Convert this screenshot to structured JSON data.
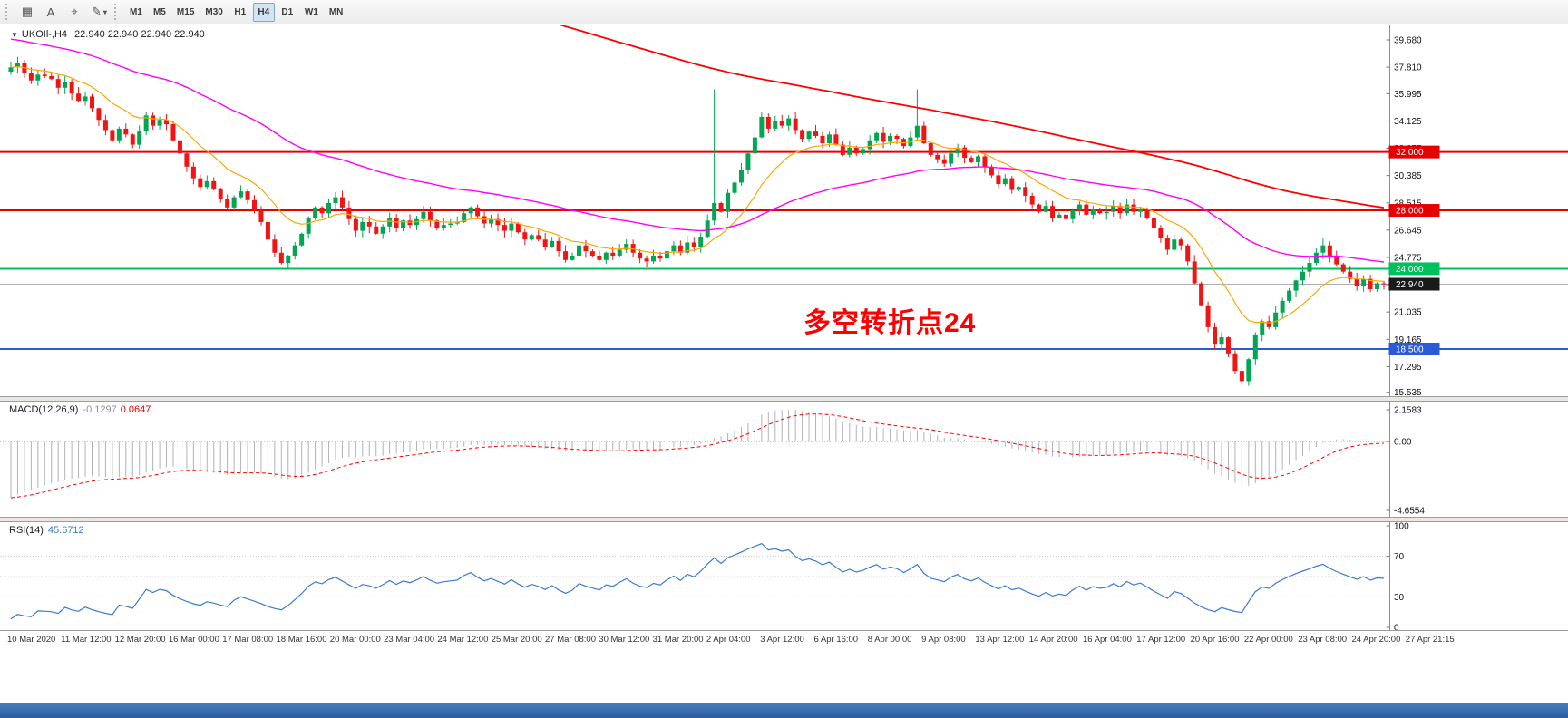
{
  "toolbar": {
    "tools": [
      {
        "name": "grid-tool",
        "glyph": "▦"
      },
      {
        "name": "text-tool",
        "glyph": "A"
      },
      {
        "name": "crosshair-tool",
        "glyph": "⌖"
      },
      {
        "name": "draw-tool",
        "glyph": "✎",
        "caret": "▾"
      }
    ],
    "timeframes": [
      "M1",
      "M5",
      "M15",
      "M30",
      "H1",
      "H4",
      "D1",
      "W1",
      "MN"
    ],
    "active_timeframe": "H4"
  },
  "chart": {
    "collapse_arrow": "▼",
    "title": "UKOIl-,H4",
    "ohlc": "22.940 22.940 22.940 22.940",
    "annotation": "多空转折点24",
    "annotation_color": "#ff0000",
    "colors": {
      "up": "#00a651",
      "down": "#f01414",
      "fast_ma": "#ffa500",
      "mid_ma": "#ff00ff",
      "slow_ma": "#ff0000",
      "current_line": "#b0b0b0",
      "current_badge": "#1a1a1a"
    },
    "price_ticks": [
      "39.680",
      "37.810",
      "35.995",
      "34.125",
      "32.255",
      "30.385",
      "28.515",
      "26.645",
      "24.775",
      "22.905",
      "21.035",
      "19.165",
      "17.295",
      "15.535"
    ],
    "levels": [
      {
        "label": "32.000",
        "value": 32.0,
        "color": "#e60000",
        "width": 2
      },
      {
        "label": "28.000",
        "value": 28.0,
        "color": "#e60000",
        "width": 2
      },
      {
        "label": "24.000",
        "value": 24.0,
        "color": "#00bf5f",
        "width": 2
      },
      {
        "label": "18.500",
        "value": 18.5,
        "color": "#2a5bd7",
        "width": 2
      }
    ],
    "current_price": {
      "label": "22.940",
      "value": 22.94
    },
    "time_labels": [
      "10 Mar 2020",
      "11 Mar 12:00",
      "12 Mar 20:00",
      "16 Mar 00:00",
      "17 Mar 08:00",
      "18 Mar 16:00",
      "20 Mar 00:00",
      "23 Mar 04:00",
      "24 Mar 12:00",
      "25 Mar 20:00",
      "27 Mar 08:00",
      "30 Mar 12:00",
      "31 Mar 20:00",
      "2 Apr 04:00",
      "3 Apr 12:00",
      "6 Apr 16:00",
      "8 Apr 00:00",
      "9 Apr 08:00",
      "13 Apr 12:00",
      "14 Apr 20:00",
      "16 Apr 04:00",
      "17 Apr 12:00",
      "20 Apr 16:00",
      "22 Apr 00:00",
      "23 Apr 08:00",
      "24 Apr 20:00",
      "27 Apr 21:15"
    ]
  },
  "chart_data": {
    "type": "candlestick",
    "symbol": "UKOIl-",
    "timeframe": "H4",
    "first_open": 37.5,
    "closes": [
      37.8,
      38.1,
      37.4,
      36.9,
      37.3,
      37.2,
      37.0,
      36.4,
      36.8,
      36.0,
      35.5,
      35.8,
      35.0,
      34.2,
      33.5,
      32.8,
      33.6,
      33.2,
      32.5,
      33.4,
      34.5,
      33.8,
      34.2,
      33.9,
      32.8,
      31.9,
      31.0,
      30.2,
      29.6,
      30.0,
      29.5,
      28.8,
      28.2,
      28.9,
      29.3,
      28.7,
      28.0,
      27.2,
      26.0,
      25.1,
      24.4,
      24.9,
      25.6,
      26.4,
      27.5,
      28.2,
      27.8,
      28.5,
      28.9,
      28.2,
      27.4,
      26.6,
      27.2,
      26.9,
      26.4,
      26.9,
      27.5,
      26.8,
      27.3,
      27.0,
      27.4,
      27.9,
      27.3,
      26.8,
      27.0,
      27.1,
      27.2,
      27.8,
      28.2,
      27.6,
      27.1,
      27.4,
      27.0,
      26.6,
      27.1,
      26.5,
      26.0,
      26.3,
      26.0,
      25.5,
      25.9,
      25.2,
      24.6,
      24.9,
      25.6,
      25.2,
      24.9,
      24.6,
      25.1,
      24.9,
      25.3,
      25.7,
      25.1,
      24.7,
      24.5,
      24.9,
      24.7,
      25.2,
      25.6,
      25.1,
      25.8,
      25.5,
      26.2,
      27.3,
      28.5,
      27.9,
      29.2,
      29.9,
      30.8,
      31.9,
      33.0,
      34.4,
      33.6,
      34.1,
      33.8,
      34.3,
      33.5,
      32.9,
      33.4,
      33.1,
      32.6,
      33.2,
      32.5,
      31.8,
      32.3,
      31.9,
      32.2,
      32.8,
      33.3,
      32.7,
      33.1,
      32.9,
      32.4,
      33.0,
      33.8,
      32.6,
      31.8,
      31.5,
      31.2,
      31.9,
      32.3,
      31.6,
      31.3,
      31.7,
      31.0,
      30.4,
      29.8,
      30.2,
      29.4,
      29.6,
      29.0,
      28.4,
      27.9,
      28.3,
      27.5,
      27.7,
      27.4,
      28.0,
      28.4,
      27.7,
      28.1,
      27.8,
      27.9,
      28.3,
      27.8,
      28.4,
      27.9,
      28.1,
      27.5,
      26.8,
      26.1,
      25.3,
      26.0,
      25.6,
      24.5,
      23.0,
      21.5,
      20.0,
      18.8,
      19.3,
      18.2,
      17.0,
      16.3,
      17.8,
      19.5,
      20.4,
      20.0,
      21.0,
      21.8,
      22.5,
      23.2,
      23.8,
      24.4,
      25.1,
      25.6,
      24.9,
      24.3,
      23.8,
      23.3,
      22.8,
      23.3,
      22.6,
      23.0,
      22.94
    ],
    "wick_overrides": [
      {
        "i": 104,
        "high": 36.3
      },
      {
        "i": 134,
        "high": 36.3
      },
      {
        "i": 182,
        "low": 15.98
      }
    ],
    "moving_averages": [
      {
        "name": "fast",
        "type": "ema",
        "period": 13
      },
      {
        "name": "mid",
        "type": "ema",
        "period": 55
      },
      {
        "name": "slow",
        "type": "sma",
        "period": 200
      }
    ]
  },
  "macd": {
    "label": "MACD(12,26,9)",
    "main_value": "-0.1297",
    "signal_value": "0.0647",
    "scale": [
      "2.1583",
      "0.00",
      "-4.6554"
    ],
    "params": {
      "fast": 12,
      "slow": 26,
      "signal": 9
    },
    "colors": {
      "hist": "#b3b3b3",
      "signal": "#ff0000"
    }
  },
  "rsi": {
    "label": "RSI(14)",
    "value": "45.6712",
    "period": 14,
    "levels": [
      70,
      50,
      30
    ],
    "scale": [
      "100",
      "70",
      "30",
      "0"
    ],
    "color": "#3a7bd5"
  }
}
